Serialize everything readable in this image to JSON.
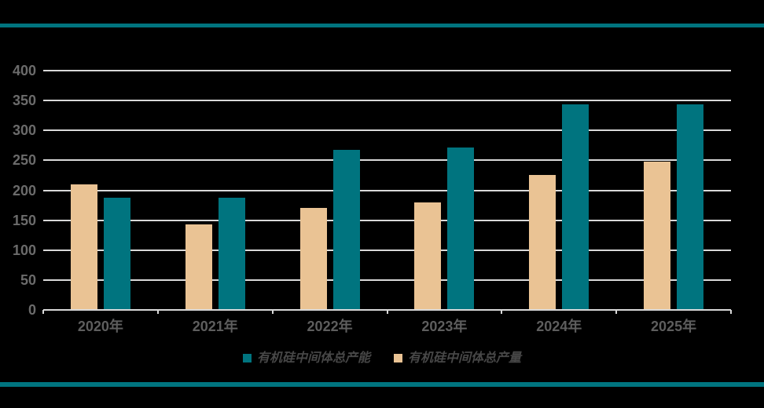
{
  "theme": {
    "background": "#000000",
    "rule_color": "#00747F",
    "gridline_color": "#D9D9D9",
    "y_label_color": "#6B6B6B",
    "x_label_color": "#5E5E5E",
    "legend_text_color": "#474747"
  },
  "chart_data": {
    "type": "bar",
    "categories": [
      "2020年",
      "2021年",
      "2022年",
      "2023年",
      "2024年",
      "2025年"
    ],
    "series": [
      {
        "key": "capacity",
        "name": "有机硅中间体总产能",
        "color": "#00747F",
        "values": [
          187,
          187,
          267,
          272,
          344,
          344
        ]
      },
      {
        "key": "output",
        "name": "有机硅中间体总产量",
        "color": "#EAC394",
        "values": [
          210,
          143,
          170,
          180,
          225,
          248
        ]
      }
    ],
    "draw_order": [
      1,
      0
    ],
    "ylim": [
      0,
      400
    ],
    "yticks": [
      0,
      50,
      100,
      150,
      200,
      250,
      300,
      350,
      400
    ],
    "grid": true,
    "legend_position": "bottom",
    "title": "",
    "xlabel": "",
    "ylabel": ""
  }
}
